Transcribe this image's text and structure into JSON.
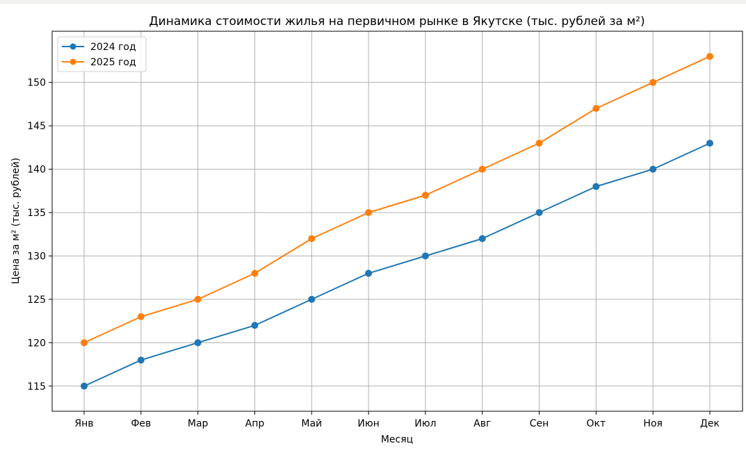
{
  "chart_data": {
    "type": "line",
    "title": "Динамика стоимости жилья на первичном рынке в Якутске (тыс. рублей за м²)",
    "xlabel": "Месяц",
    "ylabel": "Цена за м² (тыс. рублей)",
    "categories": [
      "Янв",
      "Фев",
      "Мар",
      "Апр",
      "Май",
      "Июн",
      "Июл",
      "Авг",
      "Сен",
      "Окт",
      "Ноя",
      "Дек"
    ],
    "series": [
      {
        "name": "2024 год",
        "color": "#1f77b4",
        "values": [
          115,
          118,
          120,
          122,
          125,
          128,
          130,
          132,
          135,
          138,
          140,
          143
        ]
      },
      {
        "name": "2025 год",
        "color": "#ff7f0e",
        "values": [
          120,
          123,
          125,
          128,
          132,
          135,
          137,
          140,
          143,
          147,
          150,
          153
        ]
      }
    ],
    "ylim": [
      112.1,
      155.9
    ],
    "yticks": [
      115,
      120,
      125,
      130,
      135,
      140,
      145,
      150
    ],
    "grid": true,
    "legend_position": "top-left",
    "marker": "circle"
  }
}
